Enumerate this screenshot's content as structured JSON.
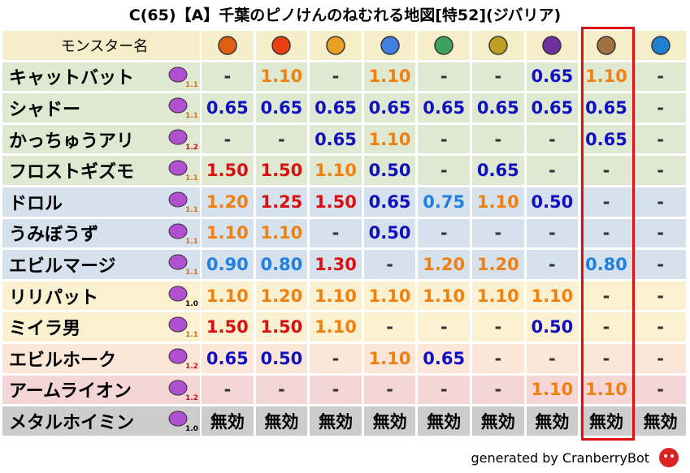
{
  "title": "C(65)【A】千葉のピノけんのねむれる地図[特52](ジバリア)",
  "table": {
    "header": "モンスター名",
    "rows": [
      {
        "name": "キャットバット",
        "badge": "1.1",
        "cells": [
          "-",
          "1.10",
          "-",
          "1.10",
          "-",
          "-",
          "0.65",
          "1.10",
          "-"
        ]
      },
      {
        "name": "シャドー",
        "badge": "1.1",
        "cells": [
          "0.65",
          "0.65",
          "0.65",
          "0.65",
          "0.65",
          "0.65",
          "0.65",
          "0.65",
          "-"
        ]
      },
      {
        "name": "かっちゅうアリ",
        "badge": "1.2",
        "cells": [
          "-",
          "-",
          "0.65",
          "1.10",
          "-",
          "-",
          "-",
          "0.65",
          "-"
        ]
      },
      {
        "name": "フロストギズモ",
        "badge": "1.1",
        "cells": [
          "1.50",
          "1.50",
          "1.10",
          "0.50",
          "-",
          "0.65",
          "-",
          "-",
          "-"
        ]
      },
      {
        "name": "ドロル",
        "badge": "1.1",
        "cells": [
          "1.20",
          "1.25",
          "1.50",
          "0.65",
          "0.75",
          "1.10",
          "0.50",
          "-",
          "-"
        ]
      },
      {
        "name": "うみぼうず",
        "badge": "1.1",
        "cells": [
          "1.10",
          "1.10",
          "-",
          "0.50",
          "-",
          "-",
          "-",
          "-",
          "-"
        ]
      },
      {
        "name": "エビルマージ",
        "badge": "1.1",
        "cells": [
          "0.90",
          "0.80",
          "1.30",
          "-",
          "1.20",
          "1.20",
          "-",
          "0.80",
          "-"
        ]
      },
      {
        "name": "リリパット",
        "badge": "1.0",
        "cells": [
          "1.10",
          "1.20",
          "1.10",
          "1.10",
          "1.10",
          "1.10",
          "1.10",
          "-",
          "-"
        ]
      },
      {
        "name": "ミイラ男",
        "badge": "1.1",
        "cells": [
          "1.50",
          "1.50",
          "1.10",
          "-",
          "-",
          "-",
          "0.50",
          "-",
          "-"
        ]
      },
      {
        "name": "エビルホーク",
        "badge": "1.2",
        "cells": [
          "0.65",
          "0.50",
          "-",
          "1.10",
          "0.65",
          "-",
          "-",
          "-",
          "-"
        ]
      },
      {
        "name": "アームライオン",
        "badge": "1.2",
        "cells": [
          "-",
          "-",
          "-",
          "-",
          "-",
          "-",
          "1.10",
          "1.10",
          "-"
        ]
      },
      {
        "name": "メタルホイミン",
        "badge": "1.0",
        "cells": [
          "無効",
          "無効",
          "無効",
          "無効",
          "無効",
          "無効",
          "無効",
          "無効",
          "無効"
        ]
      }
    ]
  },
  "footer": "generated by CranberryBot"
}
